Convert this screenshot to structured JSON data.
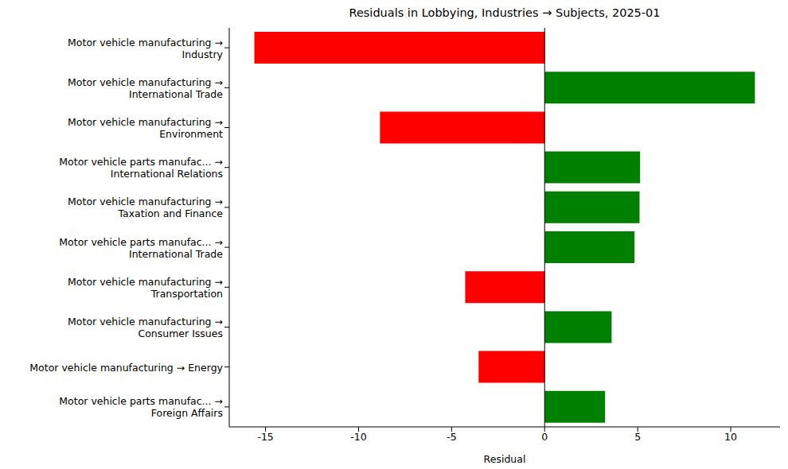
{
  "chart_data": {
    "type": "bar",
    "orientation": "horizontal",
    "title": "Residuals in Lobbying, Industries → Subjects, 2025-01",
    "x_label": "Residual",
    "categories": [
      "Motor vehicle manufacturing →\nIndustry",
      "Motor vehicle manufacturing →\nInternational Trade",
      "Motor vehicle manufacturing →\nEnvironment",
      "Motor vehicle parts manufac... →\nInternational Relations",
      "Motor vehicle manufacturing →\nTaxation and Finance",
      "Motor vehicle parts manufac... →\nInternational Trade",
      "Motor vehicle manufacturing →\nTransportation",
      "Motor vehicle manufacturing →\nConsumer Issues",
      "Motor vehicle manufacturing → Energy",
      "Motor vehicle parts manufac... →\nForeign Affairs"
    ],
    "values": [
      -15.6,
      11.3,
      -8.85,
      5.13,
      5.1,
      4.83,
      -4.27,
      3.6,
      -3.55,
      3.25
    ],
    "colors": [
      "red",
      "green",
      "red",
      "green",
      "green",
      "green",
      "red",
      "green",
      "red",
      "green"
    ],
    "xlim": [
      -16.95,
      12.65
    ],
    "xticks": [
      -15,
      -10,
      -5,
      0,
      5,
      10
    ],
    "reference_line": 0,
    "grid": false
  }
}
